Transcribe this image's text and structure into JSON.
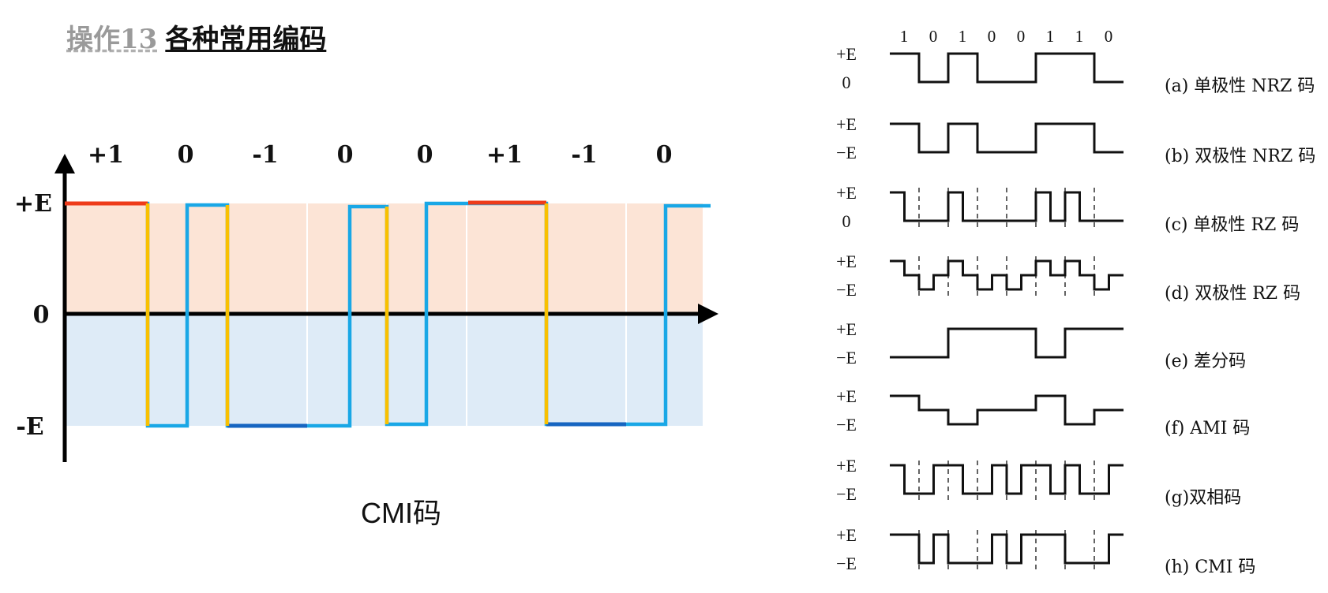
{
  "header": {
    "op_label": "操作13",
    "title": "各种常用编码"
  },
  "left_diagram": {
    "caption": "CMI码",
    "levels": [
      "+1",
      "0",
      "-1",
      "0",
      "0",
      "+1",
      "-1",
      "0"
    ],
    "y_labels": {
      "top": "+E",
      "mid": "0",
      "bottom": "-E"
    },
    "colors": {
      "upper_fill": "#fce4d6",
      "lower_fill": "#deebf7",
      "wave": "#19a7e6",
      "transition": "#f9c000",
      "mark_high": "#ee3b1a",
      "mark_low": "#1665c1",
      "axis": "#000000"
    }
  },
  "right_diagram": {
    "bits": [
      "1",
      "0",
      "1",
      "0",
      "0",
      "1",
      "1",
      "0"
    ],
    "rows": [
      {
        "id": "a",
        "caption": "(a) 单极性 NRZ 码",
        "top_label": "+E",
        "bottom_label": "0"
      },
      {
        "id": "b",
        "caption": "(b) 双极性 NRZ 码",
        "top_label": "+E",
        "bottom_label": "−E"
      },
      {
        "id": "c",
        "caption": "(c) 单极性 RZ 码",
        "top_label": "+E",
        "bottom_label": "0"
      },
      {
        "id": "d",
        "caption": "(d) 双极性 RZ 码",
        "top_label": "+E",
        "bottom_label": "−E"
      },
      {
        "id": "e",
        "caption": "(e) 差分码",
        "top_label": "+E",
        "bottom_label": "−E"
      },
      {
        "id": "f",
        "caption": "(f) AMI 码",
        "top_label": "+E",
        "bottom_label": "−E"
      },
      {
        "id": "g",
        "caption": "(g)双相码",
        "top_label": "+E",
        "bottom_label": "−E"
      },
      {
        "id": "h",
        "caption": "(h) CMI 码",
        "top_label": "+E",
        "bottom_label": "−E"
      }
    ]
  }
}
